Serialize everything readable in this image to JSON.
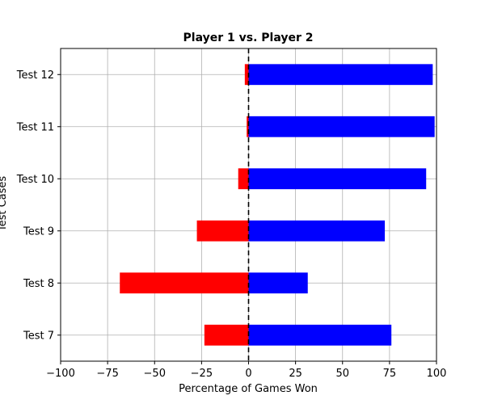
{
  "chart_data": {
    "type": "bar",
    "orientation": "horizontal",
    "title": "Player 1 vs. Player 2",
    "xlabel": "Percentage of Games Won",
    "ylabel": "Test Cases",
    "xlim": [
      -100,
      100
    ],
    "xticks": [
      -100,
      -75,
      -50,
      -25,
      0,
      25,
      50,
      75,
      100
    ],
    "xtick_labels": [
      "−100",
      "−75",
      "−50",
      "−25",
      "0",
      "25",
      "50",
      "75",
      "100"
    ],
    "categories": [
      "Test 7",
      "Test 8",
      "Test 9",
      "Test 10",
      "Test 11",
      "Test 12"
    ],
    "series": [
      {
        "color": "#ff0000",
        "values": [
          -23.5,
          -68.5,
          -27.5,
          -5.5,
          -1.0,
          -2.0
        ]
      },
      {
        "color": "#0000ff",
        "values": [
          76.0,
          31.5,
          72.5,
          94.5,
          99.0,
          98.0
        ]
      }
    ],
    "reference_line": {
      "x": 0,
      "style": "dashed",
      "color": "#000000"
    },
    "grid": true
  }
}
